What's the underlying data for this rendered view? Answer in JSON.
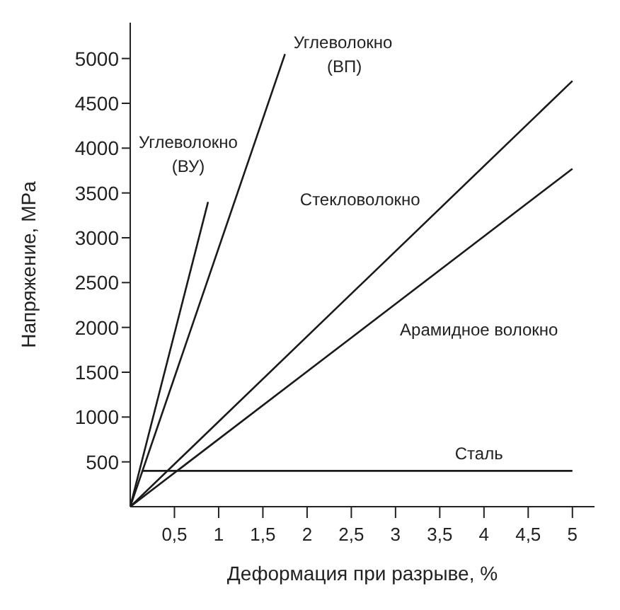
{
  "chart_data": {
    "type": "line",
    "xlabel": "Деформация при разрыве, %",
    "ylabel": "Напряжение, MPa",
    "xlim": [
      0,
      5.25
    ],
    "ylim": [
      0,
      5400
    ],
    "xticks": [
      {
        "value": 0.5,
        "label": "0,5"
      },
      1,
      {
        "value": 1.5,
        "label": "1,5"
      },
      2,
      {
        "value": 2.5,
        "label": "2,5"
      },
      3,
      {
        "value": 3.5,
        "label": "3,5"
      },
      4,
      {
        "value": 4.5,
        "label": "4,5"
      },
      5
    ],
    "yticks": [
      500,
      1000,
      1500,
      2000,
      2500,
      3000,
      3500,
      4000,
      4500,
      5000
    ],
    "grid": false,
    "marker": "none",
    "line_style": "solid",
    "series": [
      {
        "name": "Углеволокно (ВУ)",
        "color": "#1a1a1a",
        "x": [
          0,
          0.88
        ],
        "values": [
          0,
          3400
        ]
      },
      {
        "name": "Углеволокно (ВП)",
        "color": "#1a1a1a",
        "x": [
          0,
          1.75
        ],
        "values": [
          0,
          5050
        ]
      },
      {
        "name": "Стекловолокно",
        "color": "#1a1a1a",
        "x": [
          0,
          5
        ],
        "values": [
          0,
          4750
        ]
      },
      {
        "name": "Арамидное волокно",
        "color": "#1a1a1a",
        "x": [
          0,
          5
        ],
        "values": [
          0,
          3770
        ]
      },
      {
        "name": "Сталь",
        "color": "#1a1a1a",
        "x": [
          0.13,
          5
        ],
        "values": [
          400,
          400
        ]
      }
    ]
  }
}
